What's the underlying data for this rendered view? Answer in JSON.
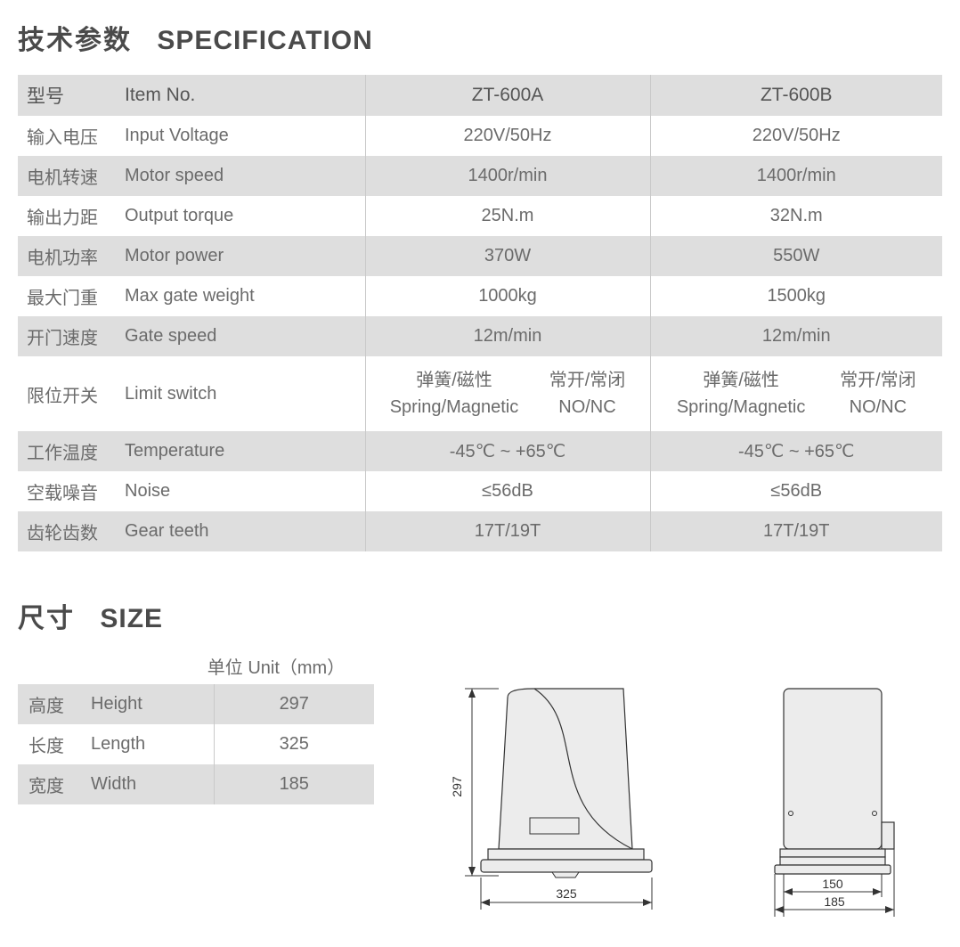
{
  "colors": {
    "grey_row": "#dedede",
    "text": "#6b6b6b",
    "title": "#4a4a4a",
    "border": "#c9c9c9",
    "diagram_fill": "#ececec",
    "diagram_stroke": "#333333"
  },
  "spec_title": {
    "cn": "技术参数",
    "en": "SPECIFICATION"
  },
  "size_title": {
    "cn": "尺寸",
    "en": "SIZE"
  },
  "unit_label": "单位 Unit（mm）",
  "spec_header": {
    "cn": "型号",
    "en": "Item No.",
    "col_a": "ZT-600A",
    "col_b": "ZT-600B"
  },
  "spec_rows": [
    {
      "cn": "输入电压",
      "en": "Input Voltage",
      "a": "220V/50Hz",
      "b": "220V/50Hz",
      "grey": false
    },
    {
      "cn": "电机转速",
      "en": "Motor speed",
      "a": "1400r/min",
      "b": "1400r/min",
      "grey": true
    },
    {
      "cn": "输出力距",
      "en": "Output torque",
      "a": "25N.m",
      "b": "32N.m",
      "grey": false
    },
    {
      "cn": "电机功率",
      "en": "Motor power",
      "a": "370W",
      "b": "550W",
      "grey": true
    },
    {
      "cn": "最大门重",
      "en": "Max gate weight",
      "a": "1000kg",
      "b": "1500kg",
      "grey": false
    },
    {
      "cn": "开门速度",
      "en": "Gate speed",
      "a": "12m/min",
      "b": "12m/min",
      "grey": true
    }
  ],
  "limit_row": {
    "cn": "限位开关",
    "en": "Limit switch",
    "sub1_cn": "弹簧/磁性",
    "sub1_en": "Spring/Magnetic",
    "sub2_cn": "常开/常闭",
    "sub2_en": "NO/NC"
  },
  "spec_rows2": [
    {
      "cn": "工作温度",
      "en": "Temperature",
      "a": "-45℃ ~ +65℃",
      "b": "-45℃ ~ +65℃",
      "grey": true
    },
    {
      "cn": "空载噪音",
      "en": "Noise",
      "a": "≤56dB",
      "b": "≤56dB",
      "grey": false
    },
    {
      "cn": "齿轮齿数",
      "en": "Gear teeth",
      "a": "17T/19T",
      "b": "17T/19T",
      "grey": true
    }
  ],
  "size_rows": [
    {
      "cn": "高度",
      "en": "Height",
      "val": "297",
      "grey": true
    },
    {
      "cn": "长度",
      "en": "Length",
      "val": "325",
      "grey": false
    },
    {
      "cn": "宽度",
      "en": "Width",
      "val": "185",
      "grey": true
    }
  ],
  "diagram": {
    "front": {
      "height_label": "297",
      "width_label": "325"
    },
    "side": {
      "inner_label": "150",
      "outer_label": "185"
    }
  }
}
